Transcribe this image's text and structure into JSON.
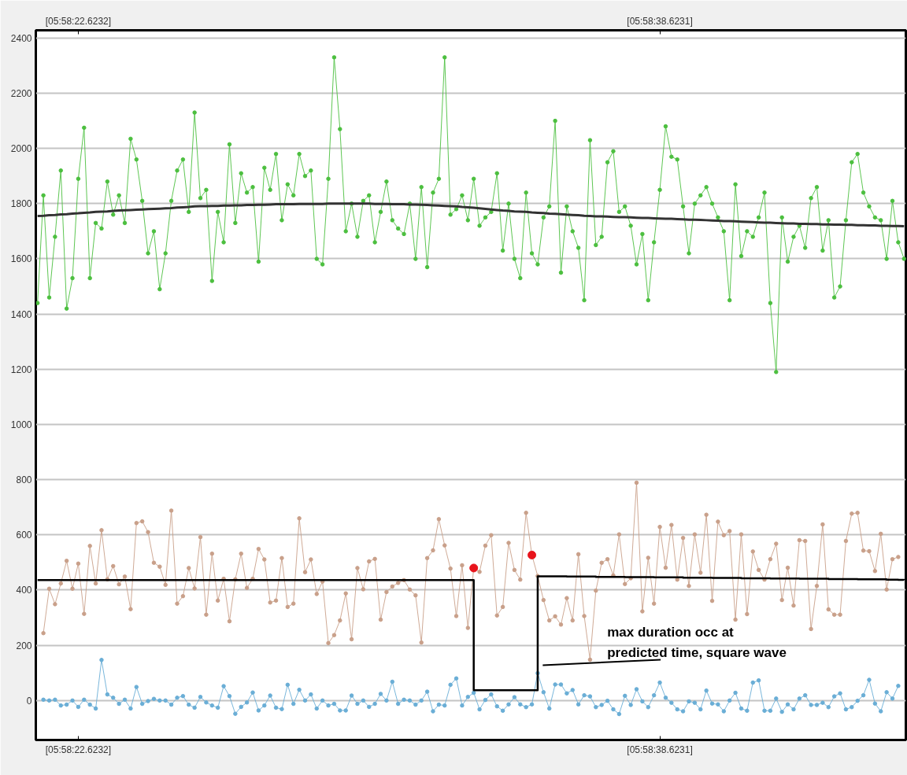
{
  "chart_data": {
    "type": "line",
    "ylim": [
      -143,
      2428
    ],
    "yticks": [
      0,
      200,
      400,
      600,
      800,
      1000,
      1200,
      1400,
      1600,
      1800,
      2000,
      2200,
      2400
    ],
    "grid": "y",
    "marker": "circle",
    "categories": [
      null,
      null,
      null,
      null,
      null,
      null,
      null,
      "[05:58:22.6232]",
      null,
      null,
      null,
      null,
      null,
      null,
      null,
      null,
      null,
      null,
      null,
      null,
      null,
      null,
      null,
      null,
      null,
      null,
      null,
      null,
      null,
      null,
      null,
      null,
      null,
      null,
      null,
      null,
      null,
      null,
      null,
      null,
      null,
      null,
      null,
      null,
      null,
      null,
      null,
      null,
      null,
      null,
      null,
      null,
      null,
      null,
      null,
      null,
      null,
      null,
      null,
      null,
      null,
      null,
      null,
      null,
      null,
      null,
      null,
      null,
      null,
      null,
      null,
      null,
      null,
      null,
      null,
      null,
      null,
      null,
      null,
      null,
      null,
      null,
      null,
      null,
      null,
      null,
      null,
      null,
      null,
      null,
      null,
      null,
      null,
      null,
      null,
      null,
      null,
      null,
      null,
      null,
      null,
      null,
      null,
      null,
      null,
      null,
      null,
      "[05:58:38.6231]",
      null,
      null,
      null,
      null,
      null,
      null,
      null,
      null,
      null,
      null,
      null,
      null,
      null,
      null,
      null,
      null,
      null,
      null,
      null,
      null,
      null,
      null,
      null,
      null,
      null,
      null,
      null,
      null,
      null,
      null,
      null,
      null,
      null,
      null,
      null,
      null,
      null,
      null,
      null,
      null,
      null,
      null
    ],
    "series": [
      {
        "color": "#4cbf3f",
        "values": [
          1440,
          1830,
          1460,
          1680,
          1920,
          1420,
          1530,
          1890,
          2075,
          1530,
          1730,
          1710,
          1880,
          1760,
          1830,
          1730,
          2035,
          1960,
          1810,
          1620,
          1700,
          1490,
          1620,
          1810,
          1920,
          1960,
          1770,
          2130,
          1820,
          1850,
          1520,
          1770,
          1660,
          2015,
          1730,
          1910,
          1840,
          1860,
          1590,
          1930,
          1850,
          1980,
          1740,
          1870,
          1830,
          1980,
          1900,
          1920,
          1600,
          1580,
          1890,
          2330,
          2070,
          1700,
          1800,
          1680,
          1810,
          1830,
          1660,
          1770,
          1880,
          1740,
          1710,
          1690,
          1800,
          1600,
          1860,
          1570,
          1840,
          1890,
          2330,
          1760,
          1780,
          1830,
          1740,
          1890,
          1720,
          1750,
          1770,
          1910,
          1630,
          1800,
          1600,
          1530,
          1840,
          1620,
          1580,
          1750,
          1790,
          2100,
          1550,
          1790,
          1700,
          1640,
          1450,
          2030,
          1650,
          1680,
          1950,
          1990,
          1770,
          1790,
          1720,
          1580,
          1690,
          1450,
          1660,
          1850,
          2080,
          1970,
          1960,
          1790,
          1620,
          1800,
          1830,
          1860,
          1800,
          1750,
          1700,
          1450,
          1870,
          1610,
          1700,
          1680,
          1750,
          1840,
          1440,
          1190,
          1750,
          1590,
          1680,
          1720,
          1640,
          1820,
          1860,
          1630,
          1740,
          1460,
          1500,
          1740,
          1950,
          1980,
          1840,
          1790,
          1750,
          1740,
          1600,
          1810,
          1660,
          1600
        ]
      },
      {
        "color": "#c9a08a",
        "values": [
          null,
          244,
          405,
          349,
          424,
          506,
          405,
          496,
          314,
          560,
          424,
          617,
          439,
          487,
          421,
          449,
          331,
          643,
          649,
          610,
          499,
          485,
          419,
          688,
          351,
          378,
          480,
          406,
          592,
          311,
          532,
          362,
          441,
          287,
          439,
          532,
          408,
          441,
          549,
          511,
          355,
          362,
          516,
          339,
          351,
          660,
          465,
          511,
          386,
          431,
          208,
          237,
          290,
          388,
          222,
          480,
          403,
          504,
          513,
          293,
          393,
          413,
          426,
          436,
          402,
          381,
          210,
          516,
          544,
          657,
          562,
          478,
          306,
          490,
          263,
          480,
          466,
          561,
          599,
          308,
          339,
          571,
          473,
          438,
          680,
          527,
          451,
          364,
          290,
          305,
          275,
          371,
          290,
          530,
          306,
          148,
          398,
          499,
          512,
          453,
          602,
          422,
          443,
          789,
          323,
          517,
          351,
          629,
          481,
          636,
          438,
          589,
          415,
          602,
          463,
          673,
          361,
          648,
          599,
          614,
          293,
          602,
          313,
          540,
          473,
          438,
          512,
          568,
          364,
          481,
          344,
          581,
          578,
          259,
          415,
          638,
          330,
          311,
          311,
          578,
          677,
          680,
          543,
          541,
          469,
          604,
          402,
          512,
          520,
          null
        ]
      },
      {
        "color": "#6aaed6",
        "values": [
          null,
          3,
          0,
          3,
          -18,
          -15,
          0,
          -23,
          3,
          -15,
          -29,
          147,
          22,
          10,
          -12,
          3,
          -29,
          49,
          -12,
          -2,
          6,
          0,
          0,
          -15,
          10,
          16,
          -15,
          -26,
          13,
          -7,
          -18,
          -26,
          52,
          16,
          -48,
          -23,
          -7,
          29,
          -36,
          -18,
          18,
          -26,
          -31,
          57,
          -12,
          39,
          0,
          22,
          -29,
          0,
          -18,
          -12,
          -36,
          -36,
          18,
          -12,
          0,
          -23,
          -12,
          24,
          0,
          68,
          -12,
          3,
          0,
          -15,
          0,
          32,
          -39,
          -15,
          -18,
          57,
          80,
          -18,
          13,
          28,
          -32,
          2,
          22,
          -21,
          -37,
          -14,
          12,
          -14,
          -24,
          -14,
          99,
          30,
          -29,
          58,
          58,
          26,
          38,
          -14,
          19,
          15,
          -24,
          -16,
          -1,
          -32,
          -49,
          17,
          -16,
          41,
          -3,
          -24,
          19,
          65,
          10,
          -8,
          -32,
          -39,
          -3,
          -8,
          -32,
          36,
          -11,
          -14,
          -39,
          0,
          28,
          -29,
          -37,
          65,
          73,
          -37,
          -37,
          7,
          -41,
          -14,
          -32,
          7,
          19,
          -16,
          -16,
          -8,
          -24,
          15,
          26,
          -32,
          -24,
          -1,
          19,
          75,
          -11,
          -39,
          30,
          7,
          53,
          null
        ]
      },
      {
        "type": "line",
        "marker": "none",
        "color": "#333333",
        "values": [
          1755,
          1756,
          1758,
          1759,
          1761,
          1762,
          1764,
          1765,
          1767,
          1768,
          1770,
          1771,
          1772,
          1774,
          1775,
          1776,
          1777,
          1778,
          1779,
          1780,
          1781,
          1782,
          1783,
          1784,
          1786,
          1787,
          1788,
          1790,
          1791,
          1791,
          1792,
          1792,
          1793,
          1793,
          1794,
          1794,
          1795,
          1795,
          1796,
          1796,
          1797,
          1798,
          1798,
          1798,
          1798,
          1799,
          1799,
          1799,
          1799,
          1799,
          1800,
          1800,
          1800,
          1800,
          1800,
          1800,
          1800,
          1800,
          1799,
          1799,
          1799,
          1798,
          1798,
          1798,
          1797,
          1797,
          1796,
          1795,
          1794,
          1793,
          1792,
          1791,
          1790,
          1788,
          1787,
          1785,
          1783,
          1781,
          1779,
          1777,
          1775,
          1774,
          1772,
          1771,
          1770,
          1768,
          1767,
          1766,
          1764,
          1763,
          1762,
          1760,
          1759,
          1758,
          1756,
          1755,
          1754,
          1754,
          1753,
          1752,
          1751,
          1751,
          1750,
          1749,
          1748,
          1748,
          1747,
          1746,
          1745,
          1745,
          1744,
          1743,
          1742,
          1742,
          1741,
          1740,
          1739,
          1738,
          1737,
          1737,
          1736,
          1735,
          1734,
          1733,
          1732,
          1731,
          1731,
          1730,
          1729,
          1728,
          1728,
          1727,
          1727,
          1726,
          1726,
          1725,
          1725,
          1724,
          1724,
          1723,
          1723,
          1722,
          1722,
          1721,
          1721,
          1720,
          1720,
          1719,
          1719,
          1718
        ]
      },
      {
        "type": "step",
        "marker": "none",
        "color": "#000000",
        "values": [
          436,
          436,
          436,
          436,
          436,
          436,
          436,
          436,
          436,
          436,
          436,
          436,
          436,
          436,
          436,
          436,
          436,
          436,
          436,
          436,
          436,
          436,
          436,
          436,
          436,
          436,
          436,
          436,
          436,
          436,
          436,
          436,
          436,
          436,
          436,
          436,
          436,
          436,
          436,
          436,
          436,
          436,
          436,
          436,
          436,
          436,
          436,
          436,
          436,
          436,
          436,
          436,
          436,
          436,
          436,
          436,
          436,
          436,
          436,
          436,
          436,
          436,
          436,
          436,
          436,
          436,
          436,
          436,
          436,
          436,
          436,
          436,
          436,
          436,
          436,
          37,
          37,
          37,
          37,
          37,
          37,
          37,
          37,
          37,
          37,
          37,
          450,
          450,
          450,
          450,
          450,
          449,
          449,
          449,
          449,
          449,
          448,
          448,
          448,
          448,
          448,
          447,
          447,
          447,
          447,
          447,
          446,
          446,
          446,
          446,
          446,
          445,
          445,
          445,
          445,
          445,
          444,
          444,
          444,
          444,
          444,
          443,
          443,
          443,
          443,
          443,
          442,
          442,
          442,
          442,
          442,
          441,
          441,
          441,
          441,
          441,
          440,
          440,
          440,
          440,
          440,
          439,
          439,
          439,
          439,
          439,
          438,
          438,
          437,
          436
        ]
      },
      {
        "type": "scatter",
        "color": "#e8141c",
        "values": [
          null,
          null,
          null,
          null,
          null,
          null,
          null,
          null,
          null,
          null,
          null,
          null,
          null,
          null,
          null,
          null,
          null,
          null,
          null,
          null,
          null,
          null,
          null,
          null,
          null,
          null,
          null,
          null,
          null,
          null,
          null,
          null,
          null,
          null,
          null,
          null,
          null,
          null,
          null,
          null,
          null,
          null,
          null,
          null,
          null,
          null,
          null,
          null,
          null,
          null,
          null,
          null,
          null,
          null,
          null,
          null,
          null,
          null,
          null,
          null,
          null,
          null,
          null,
          null,
          null,
          null,
          null,
          null,
          null,
          null,
          null,
          null,
          null,
          null,
          null,
          480,
          null,
          null,
          null,
          null,
          null,
          null,
          null,
          null,
          null,
          527,
          null,
          null,
          null,
          null,
          null,
          null,
          null,
          null,
          null,
          null,
          null,
          null,
          null,
          null,
          null,
          null,
          null,
          null,
          null,
          null,
          null,
          null,
          null,
          null,
          null,
          null,
          null,
          null,
          null,
          null,
          null,
          null,
          null,
          null,
          null,
          null,
          null,
          null,
          null,
          null,
          null,
          null,
          null,
          null,
          null,
          null,
          null,
          null,
          null,
          null,
          null,
          null,
          null,
          null,
          null,
          null,
          null,
          null,
          null,
          null,
          null,
          null,
          null,
          null
        ]
      }
    ],
    "annotations": [
      "max duration occ at\npredicted time, square wave"
    ]
  }
}
